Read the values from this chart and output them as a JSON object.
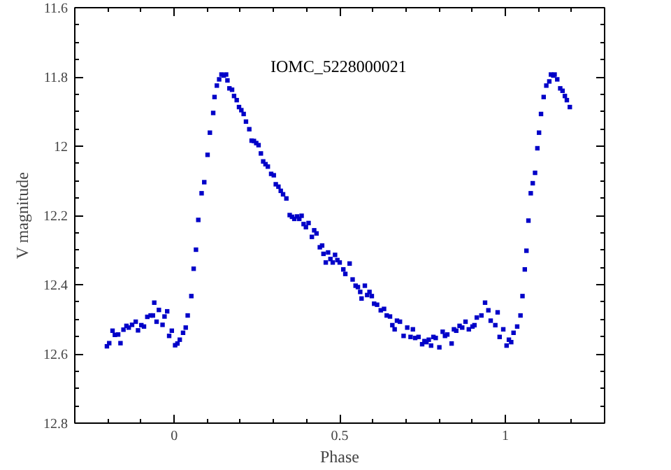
{
  "chart_data": {
    "type": "scatter",
    "title": "IOMC_5228000021",
    "xlabel": "Phase",
    "ylabel": "V magnitude",
    "xlim": [
      -0.3,
      1.3
    ],
    "ylim": [
      12.8,
      11.6
    ],
    "xticks": [
      {
        "value": -0.3,
        "label": null
      },
      {
        "value": -0.2,
        "label": null
      },
      {
        "value": -0.1,
        "label": null
      },
      0,
      {
        "value": 0.1,
        "label": null
      },
      {
        "value": 0.2,
        "label": null
      },
      {
        "value": 0.3,
        "label": null
      },
      {
        "value": 0.4,
        "label": null
      },
      0.5,
      {
        "value": 0.6,
        "label": null
      },
      {
        "value": 0.7,
        "label": null
      },
      {
        "value": 0.8,
        "label": null
      },
      {
        "value": 0.9,
        "label": null
      },
      1,
      {
        "value": 1.1,
        "label": null
      },
      {
        "value": 1.2,
        "label": null
      },
      {
        "value": 1.3,
        "label": null
      }
    ],
    "yticks": [
      11.6,
      11.8,
      {
        "value": 12.0,
        "label": "12"
      },
      12.2,
      12.4,
      12.6,
      12.8
    ],
    "grid": false,
    "marker": "square",
    "series": [
      {
        "color": "#0000c8",
        "x": [
          -0.203,
          -0.196,
          -0.186,
          -0.179,
          -0.169,
          -0.162,
          -0.153,
          -0.144,
          -0.137,
          -0.127,
          -0.116,
          -0.109,
          -0.099,
          -0.091,
          -0.081,
          -0.071,
          -0.064,
          -0.06,
          -0.053,
          -0.046,
          -0.035,
          -0.029,
          -0.021,
          -0.015,
          -0.007,
          0.003,
          0.01,
          0.017,
          0.027,
          0.035,
          0.041,
          0.052,
          0.059,
          0.066,
          0.073,
          0.083,
          0.091,
          0.101,
          0.108,
          0.118,
          0.122,
          0.129,
          0.136,
          0.143,
          0.15,
          0.157,
          0.161,
          0.167,
          0.175,
          0.181,
          0.189,
          0.196,
          0.203,
          0.21,
          0.217,
          0.227,
          0.234,
          0.241,
          0.248,
          0.255,
          0.262,
          0.269,
          0.276,
          0.283,
          0.293,
          0.301,
          0.307,
          0.315,
          0.322,
          0.329,
          0.339,
          0.349,
          0.356,
          0.363,
          0.371,
          0.378,
          0.385,
          0.391,
          0.398,
          0.406,
          0.416,
          0.423,
          0.43,
          0.44,
          0.447,
          0.451,
          0.458,
          0.465,
          0.472,
          0.479,
          0.486,
          0.493,
          0.5,
          0.511,
          0.517,
          0.53,
          0.539,
          0.548,
          0.555,
          0.562,
          0.566,
          0.576,
          0.583,
          0.59,
          0.597,
          0.604,
          0.613,
          0.624,
          0.634,
          0.642,
          0.652,
          0.659,
          0.666,
          0.673,
          0.682,
          0.693,
          0.704,
          0.714,
          0.721,
          0.728,
          0.738,
          0.749,
          0.756,
          0.762,
          0.769,
          0.776,
          0.783,
          0.79,
          0.801,
          0.811,
          0.818,
          0.825,
          0.838,
          0.845,
          0.852,
          0.862,
          0.87,
          0.88,
          0.89,
          0.901,
          0.907,
          0.914,
          0.928,
          0.939,
          0.949,
          0.956,
          0.97,
          0.977,
          0.983,
          0.994,
          1.004,
          1.011,
          1.018,
          1.025,
          1.036,
          1.046,
          1.052,
          1.059,
          1.064,
          1.07,
          1.077,
          1.083,
          1.09,
          1.097,
          1.102,
          1.108,
          1.116,
          1.124,
          1.133,
          1.138,
          1.145,
          1.149,
          1.157,
          1.166,
          1.173,
          1.18,
          1.186,
          1.195
        ],
        "values": [
          12.578,
          12.569,
          12.533,
          12.545,
          12.544,
          12.569,
          12.53,
          12.519,
          12.524,
          12.516,
          12.507,
          12.532,
          12.517,
          12.521,
          12.493,
          12.489,
          12.489,
          12.452,
          12.507,
          12.473,
          12.516,
          12.492,
          12.477,
          12.548,
          12.533,
          12.575,
          12.57,
          12.559,
          12.539,
          12.524,
          12.489,
          12.433,
          12.354,
          12.299,
          12.213,
          12.136,
          12.104,
          12.025,
          11.961,
          11.904,
          11.858,
          11.825,
          11.807,
          11.793,
          11.796,
          11.793,
          11.81,
          11.833,
          11.837,
          11.855,
          11.867,
          11.887,
          11.896,
          11.907,
          11.929,
          11.951,
          11.984,
          11.985,
          11.991,
          11.997,
          12.021,
          12.044,
          12.052,
          12.059,
          12.08,
          12.084,
          12.11,
          12.117,
          12.129,
          12.139,
          12.151,
          12.199,
          12.204,
          12.21,
          12.203,
          12.21,
          12.201,
          12.225,
          12.234,
          12.222,
          12.262,
          12.243,
          12.252,
          12.292,
          12.287,
          12.311,
          12.336,
          12.307,
          12.326,
          12.336,
          12.314,
          12.329,
          12.336,
          12.356,
          12.369,
          12.339,
          12.385,
          12.403,
          12.407,
          12.421,
          12.44,
          12.403,
          12.43,
          12.421,
          12.433,
          12.455,
          12.458,
          12.474,
          12.47,
          12.489,
          12.492,
          12.517,
          12.529,
          12.504,
          12.507,
          12.548,
          12.524,
          12.551,
          12.529,
          12.554,
          12.551,
          12.572,
          12.563,
          12.566,
          12.559,
          12.576,
          12.551,
          12.554,
          12.581,
          12.536,
          12.548,
          12.544,
          12.57,
          12.529,
          12.533,
          12.519,
          12.524,
          12.507,
          12.529,
          12.521,
          12.517,
          12.495,
          12.489,
          12.452,
          12.474,
          12.504,
          12.517,
          12.48,
          12.551,
          12.529,
          12.576,
          12.559,
          12.566,
          12.539,
          12.521,
          12.489,
          12.433,
          12.356,
          12.302,
          12.215,
          12.136,
          12.107,
          12.077,
          12.006,
          11.961,
          11.907,
          11.858,
          11.825,
          11.813,
          11.793,
          11.796,
          11.793,
          11.807,
          11.833,
          11.84,
          11.855,
          11.867,
          11.887
        ]
      }
    ]
  }
}
